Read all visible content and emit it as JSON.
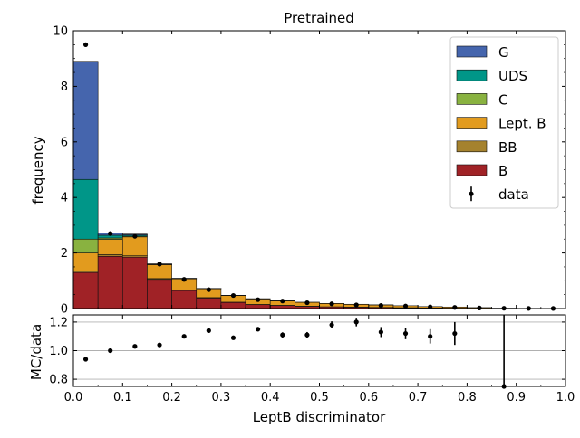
{
  "chart_data": {
    "type": "bar",
    "title": "Pretrained",
    "xlabel": "LeptB discriminator",
    "ylabel": "frequency",
    "xlim": [
      0,
      1
    ],
    "ylim": [
      0,
      10
    ],
    "xticks": [
      "0.0",
      "0.1",
      "0.2",
      "0.3",
      "0.4",
      "0.5",
      "0.6",
      "0.7",
      "0.8",
      "0.9",
      "1.0"
    ],
    "yticks": [
      "0",
      "2",
      "4",
      "6",
      "8",
      "10"
    ],
    "bin_edges": [
      0.0,
      0.05,
      0.1,
      0.15,
      0.2,
      0.25,
      0.3,
      0.35,
      0.4,
      0.45,
      0.5,
      0.55,
      0.6,
      0.65,
      0.7,
      0.75,
      0.8,
      0.85,
      0.9,
      0.95,
      1.0
    ],
    "stack_order": [
      "B",
      "BB",
      "Lept. B",
      "C",
      "UDS",
      "G"
    ],
    "series": [
      {
        "name": "B",
        "color": "#a02226",
        "values": [
          1.3,
          1.88,
          1.85,
          1.05,
          0.65,
          0.38,
          0.22,
          0.14,
          0.11,
          0.08,
          0.06,
          0.05,
          0.04,
          0.03,
          0.02,
          0.015,
          0.01,
          0.004,
          0.002,
          0.001
        ]
      },
      {
        "name": "BB",
        "color": "#a5822e",
        "values": [
          0.05,
          0.06,
          0.05,
          0.03,
          0.02,
          0.015,
          0.01,
          0.008,
          0.006,
          0.005,
          0.004,
          0.003,
          0.002,
          0.002,
          0.001,
          0.001,
          0.001,
          0.0,
          0.0,
          0.0
        ]
      },
      {
        "name": "Lept. B",
        "color": "#e29b1e",
        "values": [
          0.65,
          0.55,
          0.68,
          0.5,
          0.4,
          0.32,
          0.24,
          0.2,
          0.16,
          0.14,
          0.12,
          0.1,
          0.09,
          0.07,
          0.05,
          0.04,
          0.025,
          0.01,
          0.006,
          0.003
        ]
      },
      {
        "name": "C",
        "color": "#89b240",
        "values": [
          0.5,
          0.05,
          0.03,
          0.01,
          0.01,
          0.005,
          0.005,
          0.003,
          0.002,
          0.002,
          0.001,
          0.001,
          0.001,
          0.0,
          0.0,
          0.0,
          0.0,
          0.0,
          0.0,
          0.0
        ]
      },
      {
        "name": "UDS",
        "color": "#009688",
        "values": [
          2.15,
          0.1,
          0.04,
          0.01,
          0.005,
          0.003,
          0.002,
          0.001,
          0.001,
          0.0,
          0.0,
          0.0,
          0.0,
          0.0,
          0.0,
          0.0,
          0.0,
          0.0,
          0.0,
          0.0
        ]
      },
      {
        "name": "G",
        "color": "#4565ad",
        "values": [
          4.25,
          0.08,
          0.03,
          0.01,
          0.005,
          0.002,
          0.001,
          0.001,
          0.0,
          0.0,
          0.0,
          0.0,
          0.0,
          0.0,
          0.0,
          0.0,
          0.0,
          0.0,
          0.0,
          0.0
        ]
      }
    ],
    "data": {
      "name": "data",
      "x": [
        0.025,
        0.075,
        0.125,
        0.175,
        0.225,
        0.275,
        0.325,
        0.375,
        0.425,
        0.475,
        0.525,
        0.575,
        0.625,
        0.675,
        0.725,
        0.775,
        0.825,
        0.875,
        0.925,
        0.975
      ],
      "y": [
        9.5,
        2.7,
        2.6,
        1.6,
        1.05,
        0.68,
        0.47,
        0.32,
        0.27,
        0.21,
        0.17,
        0.13,
        0.11,
        0.09,
        0.06,
        0.04,
        0.02,
        0.01,
        0.005,
        0.003
      ]
    },
    "legend": {
      "placement": "top-right",
      "entries": [
        "G",
        "UDS",
        "C",
        "Lept. B",
        "BB",
        "B",
        "data"
      ]
    },
    "ratio": {
      "ylabel": "MC/data",
      "ylim": [
        0.75,
        1.25
      ],
      "yticks": [
        "0.8",
        "1.0",
        "1.2"
      ],
      "reference_lines": [
        0.8,
        1.0,
        1.2
      ],
      "x": [
        0.025,
        0.075,
        0.125,
        0.175,
        0.225,
        0.275,
        0.325,
        0.375,
        0.425,
        0.475,
        0.525,
        0.575,
        0.625,
        0.675,
        0.725,
        0.775,
        0.875
      ],
      "y": [
        0.94,
        1.0,
        1.03,
        1.04,
        1.1,
        1.14,
        1.09,
        1.15,
        1.11,
        1.11,
        1.18,
        1.2,
        1.13,
        1.12,
        1.1,
        1.12,
        0.75
      ],
      "err": [
        0.003,
        0.004,
        0.005,
        0.006,
        0.008,
        0.01,
        0.012,
        0.015,
        0.018,
        0.02,
        0.025,
        0.03,
        0.035,
        0.04,
        0.05,
        0.08,
        0.6
      ]
    }
  }
}
